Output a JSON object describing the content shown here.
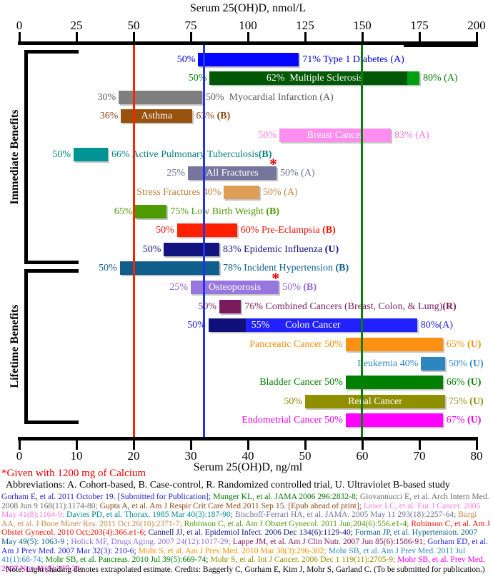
{
  "chart_data": {
    "type": "bar",
    "title_top_axis": "Serum 25(OH)D, nmol/L",
    "title_bottom_axis": "Serum 25(OH)D, ng/ml",
    "top_axis": {
      "unit": "nmol/L",
      "ticks": [
        0,
        25,
        50,
        75,
        100,
        125,
        150,
        175,
        200
      ],
      "range": [
        0,
        200
      ]
    },
    "bottom_axis": {
      "unit": "ng/ml",
      "ticks": [
        0,
        10,
        20,
        30,
        40,
        50,
        60,
        70,
        80
      ],
      "range": [
        0,
        80
      ]
    },
    "reference_lines": [
      {
        "name": "red-line",
        "ng": 20.0,
        "color": "#FF2200"
      },
      {
        "name": "blue-line",
        "ng": 32.3,
        "color": "#2233EE"
      },
      {
        "name": "green-line",
        "ng": 59.9,
        "color": "#088008"
      }
    ],
    "groups": [
      {
        "label": "Immediate Benefits",
        "bracket_rows": [
          1,
          11
        ]
      },
      {
        "label": "Lifetime Benefits",
        "bracket_rows": [
          12,
          20
        ]
      }
    ],
    "rows": [
      {
        "row": 1,
        "name": "Type 1 Diabetes",
        "left_label": "50%",
        "right_label": "71% Type 1 Diabetes (A)",
        "range_ng": [
          31.3,
          48.9
        ],
        "bar_color": "#0505FF",
        "text_color": "#0000D2"
      },
      {
        "row": 2,
        "name": "Multiple Sclerosis",
        "left_label": "50%",
        "inside_label": "62%  Multiple Sclerosis",
        "right_label": "80% (A)",
        "range_ng": [
          33.3,
          70.0
        ],
        "light_from_ng": 67.9,
        "light_color": "#00A010",
        "bar_color": "#005704",
        "text_color": "#008000"
      },
      {
        "row": 3,
        "name": "Myocardial Infarction",
        "left_label": "30%",
        "right_label": "50%  Myocardial Infarction (A)",
        "range_ng": [
          17.4,
          32.0
        ],
        "bar_color": "#7F7F7F",
        "text_color": "#5A5A5A"
      },
      {
        "row": 4,
        "name": "Asthma",
        "left_label": "36%",
        "inside_label": "Asthma",
        "right_label": "63% (B)",
        "range_ng": [
          17.8,
          30.3
        ],
        "bar_color": "#99520E",
        "text_color": "#8B4513"
      },
      {
        "row": 5,
        "name": "Breast Cancer",
        "left_label": "50%",
        "inside_label": "Breast Cancer",
        "right_label": "83% (A)",
        "range_ng": [
          45.5,
          65.0
        ],
        "bar_color": "#FF8DF0",
        "text_color": "#FF77E9"
      },
      {
        "row": 6,
        "name": "Active Pulmonary Tuberculosis",
        "left_label": "50%",
        "right_label": "66% Active Pulmonary Tuberculosis(B)",
        "range_ng": [
          9.5,
          15.5
        ],
        "bar_color": "#009494",
        "text_color": "#008080"
      },
      {
        "row": 7,
        "name": "All Fractures",
        "left_label": "25%",
        "inside_label": "All Fractures",
        "right_label": "50% (A)",
        "range_ng": [
          29.5,
          45.0
        ],
        "bar_color": "#75759E",
        "text_color": "#6E6E99",
        "asterisk": true
      },
      {
        "row": 8,
        "name": "Stress Fractures",
        "left_label": "Stress Fractures 40%",
        "right_label": "50% (A)",
        "range_ng": [
          35.8,
          42.0
        ],
        "bar_color": "#DC9F55",
        "text_color": "#C08038"
      },
      {
        "row": 9,
        "name": "Low Birth Weight",
        "left_label": "65%",
        "right_label": "75% Low Birth Weight (B)",
        "range_ng": [
          20.3,
          25.8
        ],
        "bar_color": "#4C9B00",
        "text_color": "#4C9A06"
      },
      {
        "row": 10,
        "name": "Pre-Eclampsia",
        "left_label": "50%",
        "right_label": "60% Pre-Eclampsia (B)",
        "range_ng": [
          27.6,
          38.1
        ],
        "bar_color": "#FF2000",
        "text_color": "#EE1100"
      },
      {
        "row": 11,
        "name": "Epidemic Influenza",
        "left_label": "50%",
        "right_label": "83% Epidemic Influenza (U)",
        "range_ng": [
          25.3,
          35.0
        ],
        "bar_color": "#131380",
        "text_color": "#131380"
      },
      {
        "row": 12,
        "name": "Incident Hypertension",
        "left_label": "50%",
        "right_label": "78% Incident Hypertension (B)",
        "range_ng": [
          17.6,
          35.0
        ],
        "bar_color": "#0F5E8C",
        "text_color": "#0F5E8C"
      },
      {
        "row": 13,
        "name": "Osteoporosis",
        "left_label": "25%",
        "inside_label": "Osteoporosis",
        "right_label": "50% (B)",
        "range_ng": [
          30.0,
          45.4
        ],
        "bar_color": "#9777DD",
        "text_color": "#9163D6",
        "asterisk": true
      },
      {
        "row": 14,
        "name": "Combined Cancers",
        "left_label": "50%",
        "right_label": "76% Combined Cancers (Breast, Colon, & Lung)(R)",
        "range_ng": [
          35.0,
          38.8
        ],
        "bar_color": "#7A1B5E",
        "text_color": "#7A1B5E"
      },
      {
        "row": 15,
        "name": "Colon Cancer",
        "left_label": "50%",
        "inside_label": "Colon Cancer",
        "inside_label2": "55%",
        "right_label": "80%(A)",
        "range_ng": [
          33.1,
          69.6
        ],
        "dark_to_ng": 39.6,
        "dark_color": "#10107A",
        "bar_color": "#2121FF",
        "text_color": "#2020E0"
      },
      {
        "row": 16,
        "name": "Pancreatic Cancer",
        "left_label": "Pancreatic Cancer 50%",
        "right_label": "65% (U)",
        "range_ng": [
          57.1,
          74.1
        ],
        "bar_color": "#FF9012",
        "text_color": "#FF8C00"
      },
      {
        "row": 17,
        "name": "Leukemia",
        "left_label": "Leukemia 40%",
        "right_label": "50% (U)",
        "range_ng": [
          70.3,
          74.5
        ],
        "bar_color": "#2E86C1",
        "text_color": "#2E86C1"
      },
      {
        "row": 18,
        "name": "Bladder Cancer",
        "left_label": "Bladder Cancer 50%",
        "right_label": "66% (U)",
        "range_ng": [
          57.1,
          74.1
        ],
        "bar_color": "#008000",
        "text_color": "#008000"
      },
      {
        "row": 19,
        "name": "Renal Cancer",
        "left_label": "50%",
        "inside_label": "Renal Cancer",
        "right_label": "75% (U)",
        "range_ng": [
          50.0,
          74.5
        ],
        "bar_color": "#8F8F00",
        "text_color": "#8A8A00"
      },
      {
        "row": 20,
        "name": "Endometrial Cancer",
        "left_label": "Endometrial Cancer 50%",
        "right_label": "67% (U)",
        "range_ng": [
          57.1,
          74.1
        ],
        "bar_color": "#FF00FF",
        "text_color": "#EE00EE"
      }
    ],
    "asterisk_glyph": "*"
  },
  "footer": {
    "footnote": "*Given with 1200 mg of Calcium",
    "footnote_color": "#E80000",
    "abbreviations": "Abbreviations: A. Cohort-based, B. Case-control, R. Randomized controlled trial, U. Ultraviolet B-based study",
    "references": [
      {
        "color": "#2222CC",
        "text": "Gorham E, et al. 2011 October 19. [Submitted for Publication]; "
      },
      {
        "color": "#007800",
        "text": "Munger KL, et al. JAMA 2006 296:2832-8; "
      },
      {
        "color": "#6B6B6B",
        "text": "Giovannucci E, et al. Arch Intern Med. 2008 Jun 9 168(11):1174-80; "
      },
      {
        "color": "#8B4513",
        "text": "Gupta A, et al. Am J Respir Crit Care Med 2011 Sep 15. [Epub ahead of print]; "
      },
      {
        "color": "#FF77E9",
        "text": "Lowe LC, et al. Eur J Cancer. 2005 May 41(8):1164-9; "
      },
      {
        "color": "#008B8B",
        "text": "Davies PD, et al. Thorax. 1985 Mar 40(3):187-90; "
      },
      {
        "color": "#73739E",
        "text": "Bischoff-Ferrari HA, et al. JAMA. 2005 May 11 293(18):2257-64; "
      },
      {
        "color": "#CC8844",
        "text": "Burgi AA, et al. J Bone Miner Res. 2011 Oct 26(10):2371-7; "
      },
      {
        "color": "#4C9A06",
        "text": "Robinson C, et al. Am J Obstet Gynecol. 2011 Jun;204(6):556.e1-4; "
      },
      {
        "color": "#EE1100",
        "text": "Robinson C, et al. Am J Obstet Gynecol. 2010 Oct;203(4):366.e1-6; "
      },
      {
        "color": "#131380",
        "text": "Cannell JJ, et al. Epidemiol Infect. 2006 Dec 134(6):1129-40; "
      },
      {
        "color": "#0F5E8C",
        "text": "Forman JP, et al. Hypertension. 2007 May 49(5): 1063-9 ; "
      },
      {
        "color": "#9370DB",
        "text": "Holick MF, Drugs Aging. 2007 24(12):1017-29; "
      },
      {
        "color": "#7D1860",
        "text": "Lappe JM, et al. Am J Clin Nutr. 2007 Jun 85(6):1586-91; "
      },
      {
        "color": "#2020E0",
        "text": "Gorham ED, et al. Am J Prev Med. 2007 Mar 32(3): 210-6; "
      },
      {
        "color": "#FF8C00",
        "text": "Mohr S, et al. Am J Prev Med. 2010 Mar 38(3):296-302; "
      },
      {
        "color": "#2E86C1",
        "text": "Mohr SB, et al. Am J Prev Med. 2011 Jul 41(1):68-74; "
      },
      {
        "color": "#008000",
        "text": "Mohr SB, et al. Pancreas. 2010 Jul 39(5):669-74; "
      },
      {
        "color": "#8F8F00",
        "text": "Mohr S, et al. Int J Cancer. 2006 Dec 1 119(11):2705-9; "
      },
      {
        "color": "#EE00EE",
        "text": "Mohr SB, et al. Prev Med. 2007 Nov 45(5):327-31; "
      }
    ],
    "note": "Note: Light shading denotes extrapolated estimate.  Credits: Baggerly C, Gorham E, Kim J, Mohr S, Garland C. (To be submitted for publication.)"
  }
}
